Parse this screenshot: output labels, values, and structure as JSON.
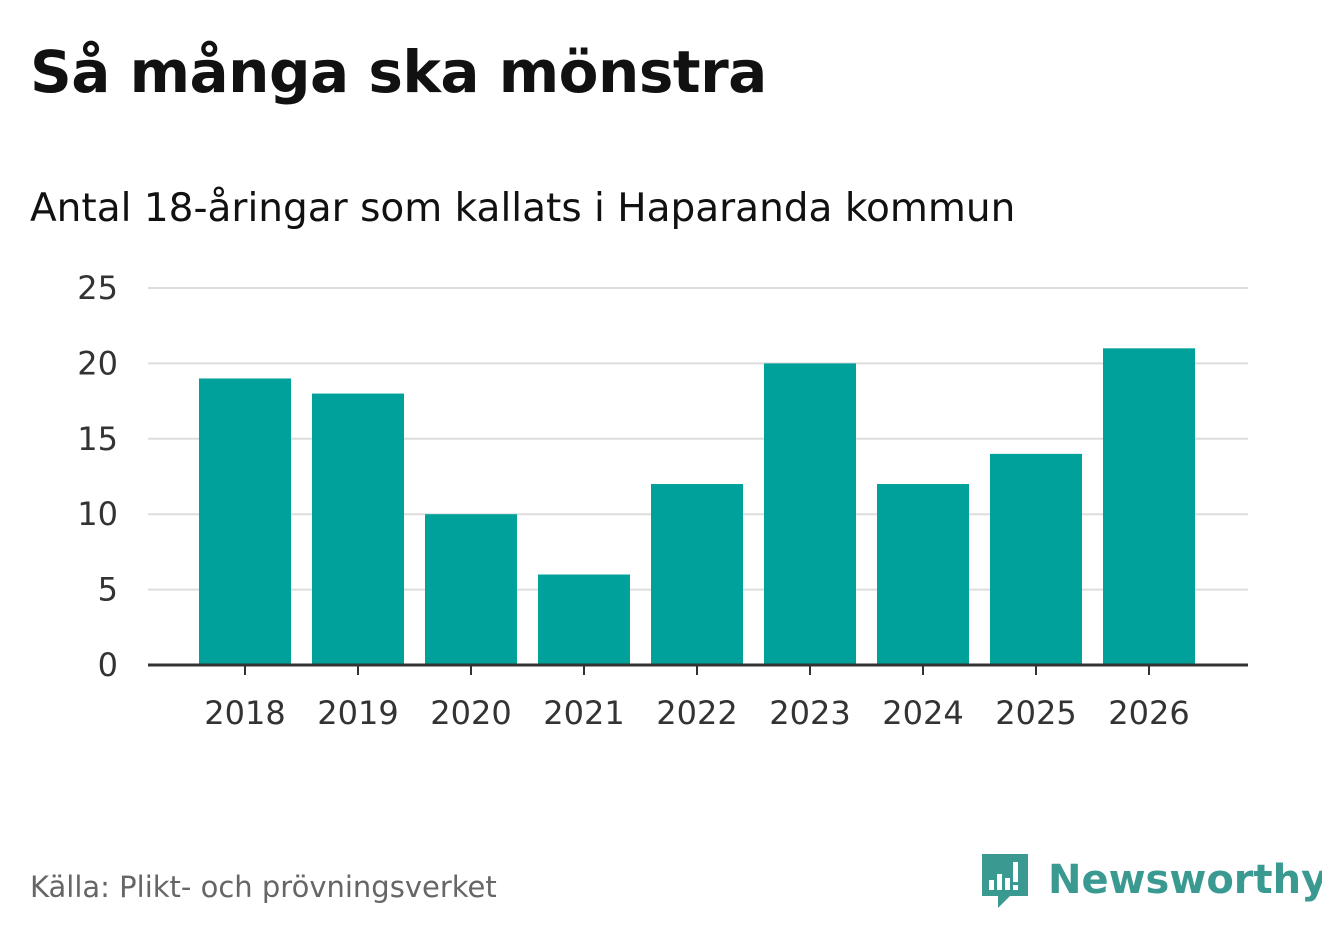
{
  "title": "Så många ska mönstra",
  "subtitle": "Antal 18-åringar som kallats i Haparanda kommun",
  "source": "Källa: Plikt- och prövningsverket",
  "brand": {
    "name": "Newsworthy",
    "logo_icon": "bar-chart-speech-bubble-icon",
    "color": "#3a9a91"
  },
  "colors": {
    "bar": "#00a19a",
    "grid": "#dddddd",
    "axis": "#333333",
    "tick_text": "#333333"
  },
  "chart_data": {
    "type": "bar",
    "title": "Så många ska mönstra",
    "subtitle": "Antal 18-åringar som kallats i Haparanda kommun",
    "categories": [
      "2018",
      "2019",
      "2020",
      "2021",
      "2022",
      "2023",
      "2024",
      "2025",
      "2026"
    ],
    "values": [
      19,
      18,
      10,
      6,
      12,
      20,
      12,
      14,
      21
    ],
    "xlabel": "",
    "ylabel": "",
    "ylim": [
      0,
      25
    ],
    "yticks": [
      0,
      5,
      10,
      15,
      20,
      25
    ],
    "grid": true,
    "legend": "none"
  }
}
